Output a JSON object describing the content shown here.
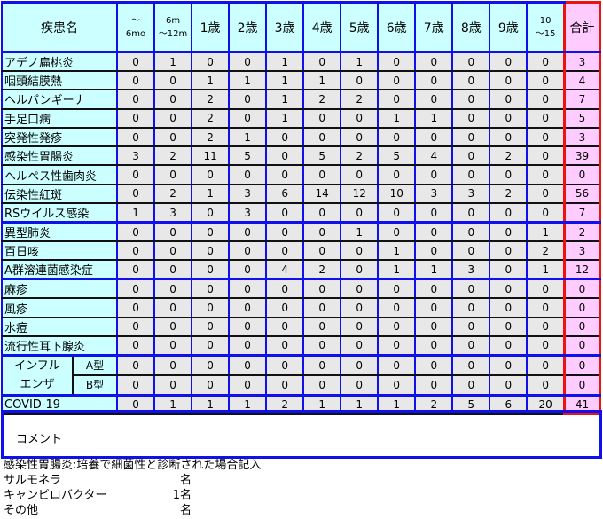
{
  "header": {
    "disease": "疾患名",
    "ages": [
      [
        "〜",
        "6mo"
      ],
      [
        "6m",
        "〜12m"
      ],
      [
        "1歳"
      ],
      [
        "2歳"
      ],
      [
        "3歳"
      ],
      [
        "4歳"
      ],
      [
        "5歳"
      ],
      [
        "6歳"
      ],
      [
        "7歳"
      ],
      [
        "8歳"
      ],
      [
        "9歳"
      ],
      [
        "10",
        "〜15"
      ]
    ],
    "total": "合計"
  },
  "rows": [
    {
      "name": "アデノ扁桃炎",
      "values": [
        0,
        1,
        0,
        0,
        1,
        0,
        1,
        0,
        0,
        0,
        0,
        0
      ],
      "total": 3
    },
    {
      "name": "咽頭結膜熱",
      "values": [
        0,
        0,
        1,
        1,
        1,
        1,
        0,
        0,
        0,
        0,
        0,
        0
      ],
      "total": 4
    },
    {
      "name": "ヘルパンギーナ",
      "values": [
        0,
        0,
        2,
        0,
        1,
        2,
        2,
        0,
        0,
        0,
        0,
        0
      ],
      "total": 7
    },
    {
      "name": "手足口病",
      "values": [
        0,
        0,
        2,
        0,
        1,
        0,
        0,
        1,
        1,
        0,
        0,
        0
      ],
      "total": 5
    },
    {
      "name": "突発性発疹",
      "values": [
        0,
        0,
        2,
        1,
        0,
        0,
        0,
        0,
        0,
        0,
        0,
        0
      ],
      "total": 3
    },
    {
      "name": "感染性胃腸炎",
      "values": [
        3,
        2,
        11,
        5,
        0,
        5,
        2,
        5,
        4,
        0,
        2,
        0
      ],
      "total": 39
    },
    {
      "name": "ヘルペス性歯肉炎",
      "values": [
        0,
        0,
        0,
        0,
        0,
        0,
        0,
        0,
        0,
        0,
        0,
        0
      ],
      "total": 0
    },
    {
      "name": "伝染性紅斑",
      "values": [
        0,
        2,
        1,
        3,
        6,
        14,
        12,
        10,
        3,
        3,
        2,
        0
      ],
      "total": 56
    },
    {
      "name": "RSウイルス感染",
      "values": [
        1,
        3,
        0,
        3,
        0,
        0,
        0,
        0,
        0,
        0,
        0,
        0
      ],
      "total": 7,
      "sep": true
    },
    {
      "name": "異型肺炎",
      "values": [
        0,
        0,
        0,
        0,
        0,
        0,
        1,
        0,
        0,
        0,
        0,
        1
      ],
      "total": 2
    },
    {
      "name": "百日咳",
      "values": [
        0,
        0,
        0,
        0,
        0,
        0,
        0,
        1,
        0,
        0,
        0,
        2
      ],
      "total": 3
    },
    {
      "name": "A群溶連菌感染症",
      "values": [
        0,
        0,
        0,
        0,
        4,
        2,
        0,
        1,
        1,
        3,
        0,
        1
      ],
      "total": 12,
      "sep": true
    },
    {
      "name": "麻疹",
      "values": [
        0,
        0,
        0,
        0,
        0,
        0,
        0,
        0,
        0,
        0,
        0,
        0
      ],
      "total": 0
    },
    {
      "name": "風疹",
      "values": [
        0,
        0,
        0,
        0,
        0,
        0,
        0,
        0,
        0,
        0,
        0,
        0
      ],
      "total": 0
    },
    {
      "name": "水痘",
      "values": [
        0,
        0,
        0,
        0,
        0,
        0,
        0,
        0,
        0,
        0,
        0,
        0
      ],
      "total": 0
    },
    {
      "name": "流行性耳下腺炎",
      "values": [
        0,
        0,
        0,
        0,
        0,
        0,
        0,
        0,
        0,
        0,
        0,
        0
      ],
      "total": 0,
      "sep": true
    },
    {
      "group": "インフル\nエンザ",
      "name": "A型",
      "values": [
        0,
        0,
        0,
        0,
        0,
        0,
        0,
        0,
        0,
        0,
        0,
        0
      ],
      "total": 0
    },
    {
      "group": "インフル\nエンザ",
      "name": "B型",
      "values": [
        0,
        0,
        0,
        0,
        0,
        0,
        0,
        0,
        0,
        0,
        0,
        0
      ],
      "total": 0,
      "sep": true
    },
    {
      "name": "COVID-19",
      "values": [
        0,
        1,
        1,
        1,
        2,
        1,
        1,
        1,
        2,
        5,
        6,
        20
      ],
      "total": 41,
      "last": true
    }
  ],
  "comment": {
    "label": "コメント"
  },
  "notes": {
    "heading": "感染性胃腸炎:培養で細菌性と診断された場合記入",
    "items": [
      {
        "label": "サルモネラ",
        "count": "名"
      },
      {
        "label": "キャンピロバクター",
        "count": "1名"
      },
      {
        "label": "その他",
        "count": "名"
      }
    ]
  }
}
